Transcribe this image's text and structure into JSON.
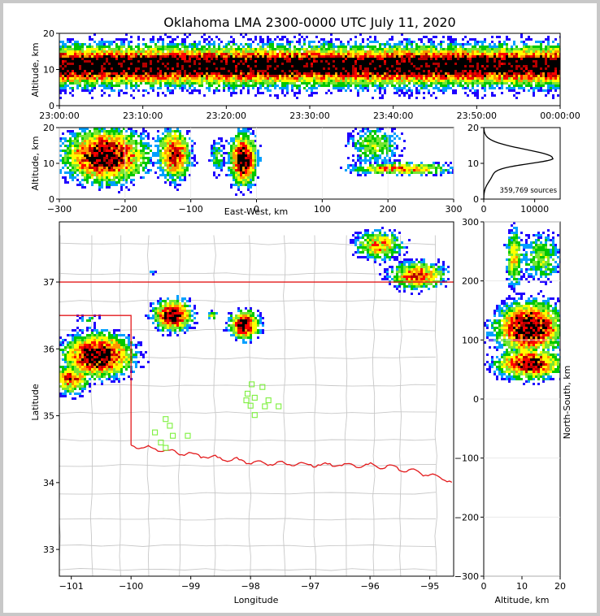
{
  "chart_data": [
    {
      "id": "time_height",
      "type": "heatmap",
      "title": "Oklahoma LMA 2300-0000 UTC July 11, 2020",
      "xlabel": "",
      "ylabel": "Altitude, km",
      "ylim": [
        0,
        20
      ],
      "x_ticks": [
        "23:00:00",
        "23:10:00",
        "23:20:00",
        "23:30:00",
        "23:40:00",
        "23:50:00",
        "00:00:00"
      ],
      "y_ticks": [
        0,
        10,
        20
      ],
      "band_center_km": 11,
      "band_halfwidth_km": 6
    },
    {
      "id": "ew_height",
      "type": "heatmap",
      "xlabel": "East-West, km",
      "ylabel": "Altitude, km",
      "xlim": [
        -300,
        300
      ],
      "ylim": [
        0,
        20
      ],
      "x_ticks": [
        -300,
        -200,
        -100,
        0,
        100,
        200,
        300
      ],
      "y_ticks": [
        0,
        10,
        20
      ],
      "cells": [
        {
          "x": -230,
          "z": 12,
          "sx": 42,
          "sz": 5,
          "w": 1.0
        },
        {
          "x": -125,
          "z": 12.5,
          "sx": 18,
          "sz": 5,
          "w": 0.8
        },
        {
          "x": -60,
          "z": 12,
          "sx": 8,
          "sz": 4,
          "w": 0.4
        },
        {
          "x": -20,
          "z": 11,
          "sx": 14,
          "sz": 5,
          "w": 1.0
        },
        {
          "x": 180,
          "z": 15,
          "sx": 30,
          "sz": 4,
          "w": 0.45
        },
        {
          "x": 220,
          "z": 8.5,
          "sx": 55,
          "sz": 1.2,
          "w": 0.7
        }
      ]
    },
    {
      "id": "altitude_histogram",
      "type": "line",
      "xlim": [
        0,
        15000
      ],
      "ylim": [
        0,
        20
      ],
      "x_ticks": [
        0,
        10000
      ],
      "y_ticks": [
        0,
        10,
        20
      ],
      "annotation": "359,769 sources",
      "profile_peak_alt_km": 11.5,
      "profile_peak_count": 13500
    },
    {
      "id": "plan_view",
      "type": "heatmap",
      "xlabel": "Longitude",
      "ylabel": "Latitude",
      "xlim": [
        -101.2,
        -94.6
      ],
      "ylim": [
        32.6,
        37.9
      ],
      "x_ticks": [
        -101,
        -100,
        -99,
        -98,
        -97,
        -96,
        -95
      ],
      "y_ticks": [
        33,
        34,
        35,
        36,
        37
      ],
      "storms": [
        {
          "lon": -100.55,
          "lat": 35.9,
          "sx": 0.4,
          "sy": 0.22,
          "w": 1.0
        },
        {
          "lon": -101.0,
          "lat": 35.55,
          "sx": 0.22,
          "sy": 0.15,
          "w": 0.75
        },
        {
          "lon": -100.7,
          "lat": 36.45,
          "sx": 0.15,
          "sy": 0.06,
          "w": 0.35
        },
        {
          "lon": -99.3,
          "lat": 36.5,
          "sx": 0.22,
          "sy": 0.16,
          "w": 0.95
        },
        {
          "lon": -98.65,
          "lat": 36.5,
          "sx": 0.07,
          "sy": 0.05,
          "w": 0.45
        },
        {
          "lon": -98.1,
          "lat": 36.35,
          "sx": 0.17,
          "sy": 0.14,
          "w": 1.0
        },
        {
          "lon": -95.85,
          "lat": 37.55,
          "sx": 0.28,
          "sy": 0.15,
          "w": 0.65
        },
        {
          "lon": -95.2,
          "lat": 37.1,
          "sx": 0.32,
          "sy": 0.14,
          "w": 0.75
        },
        {
          "lon": -99.65,
          "lat": 37.15,
          "sx": 0.05,
          "sy": 0.03,
          "w": 0.25
        }
      ],
      "stations": [
        [
          -99.42,
          34.95
        ],
        [
          -99.35,
          34.85
        ],
        [
          -99.6,
          34.75
        ],
        [
          -99.3,
          34.7
        ],
        [
          -99.05,
          34.7
        ],
        [
          -99.5,
          34.6
        ],
        [
          -99.42,
          34.52
        ],
        [
          -97.98,
          35.47
        ],
        [
          -97.8,
          35.43
        ],
        [
          -98.05,
          35.33
        ],
        [
          -97.93,
          35.27
        ],
        [
          -98.07,
          35.23
        ],
        [
          -97.7,
          35.23
        ],
        [
          -98.0,
          35.15
        ],
        [
          -97.76,
          35.14
        ],
        [
          -97.53,
          35.14
        ],
        [
          -97.93,
          35.01
        ]
      ],
      "state_line_color": "#e31a1c",
      "county_line_color": "#c8c8c8"
    },
    {
      "id": "ns_height",
      "type": "heatmap",
      "xlabel": "Altitude, km",
      "ylabel": "North-South, km",
      "xlim": [
        0,
        20
      ],
      "ylim": [
        -300,
        300
      ],
      "x_ticks": [
        0,
        10,
        20
      ],
      "y_ticks": [
        -300,
        -200,
        -100,
        0,
        100,
        200,
        300
      ],
      "cells": [
        {
          "z": 12,
          "y": 120,
          "sz": 6,
          "sy": 30,
          "w": 1.0
        },
        {
          "z": 12,
          "y": 60,
          "sz": 6,
          "sy": 18,
          "w": 0.9
        },
        {
          "z": 8,
          "y": 240,
          "sz": 1.5,
          "sy": 35,
          "w": 0.6
        },
        {
          "z": 15,
          "y": 240,
          "sz": 4,
          "sy": 30,
          "w": 0.45
        },
        {
          "z": 12,
          "y": 140,
          "sz": 4,
          "sy": 15,
          "w": 0.8
        }
      ]
    }
  ]
}
